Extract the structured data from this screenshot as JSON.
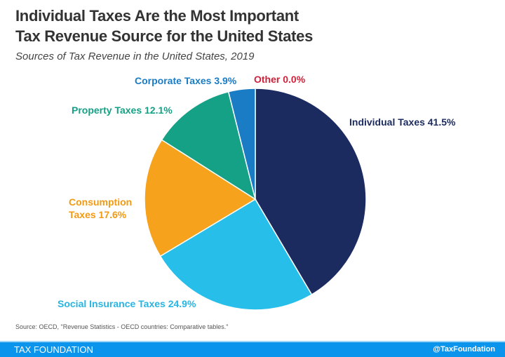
{
  "title_line1": "Individual Taxes Are the Most Important",
  "title_line2": "Tax Revenue Source for the United States",
  "subtitle": "Sources of Tax Revenue in the United States, 2019",
  "chart_data": {
    "type": "pie",
    "title": "Individual Taxes Are the Most Important Tax Revenue Source for the United States",
    "subtitle": "Sources of Tax Revenue in the United States, 2019",
    "slices": [
      {
        "label": "Individual Taxes 41.5%",
        "name": "Individual Taxes",
        "value": 41.5,
        "color": "#1b2b5f"
      },
      {
        "label": "Social Insurance Taxes 24.9%",
        "name": "Social Insurance Taxes",
        "value": 24.9,
        "color": "#27bfea"
      },
      {
        "label": "Consumption Taxes 17.6%",
        "name": "Consumption Taxes",
        "value": 17.6,
        "color": "#f7a21c"
      },
      {
        "label": "Property Taxes 12.1%",
        "name": "Property Taxes",
        "value": 12.1,
        "color": "#15a185"
      },
      {
        "label": "Corporate Taxes 3.9%",
        "name": "Corporate Taxes",
        "value": 3.9,
        "color": "#1a7cc5"
      },
      {
        "label": "Other 0.0%",
        "name": "Other",
        "value": 0.0,
        "color": "#d0213a"
      }
    ],
    "label_colors": [
      "#1b2b5f",
      "#27b5e3",
      "#f29a12",
      "#15a185",
      "#1a7cc5",
      "#d0213a"
    ],
    "start_angle": "12 o'clock, clockwise"
  },
  "consumption_line1": "Consumption",
  "consumption_line2": "Taxes 17.6%",
  "source": "Source: OECD, \"Revenue Statistics - OECD countries: Comparative tables.\"",
  "footer": {
    "brand": "TAX FOUNDATION",
    "handle": "@TaxFoundation"
  }
}
